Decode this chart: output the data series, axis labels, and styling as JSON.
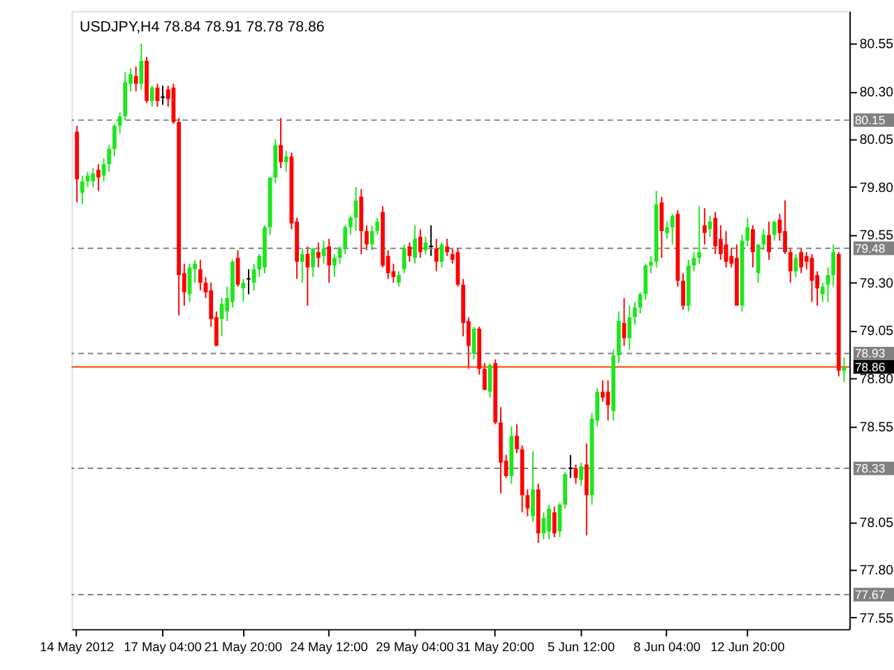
{
  "chart_data": {
    "type": "candlestick",
    "title": "USDJPY,H4 78.84 78.91 78.78 78.86",
    "categories": [
      "14 May 2012",
      null,
      null,
      null,
      null,
      null,
      null,
      null,
      null,
      null,
      null,
      null,
      null,
      null,
      null,
      null,
      "17 May 04:00",
      null,
      null,
      null,
      null,
      null,
      null,
      null,
      null,
      null,
      null,
      null,
      null,
      null,
      null,
      "21 May 20:00",
      null,
      null,
      null,
      null,
      null,
      null,
      null,
      null,
      null,
      null,
      null,
      null,
      null,
      null,
      null,
      "24 May 12:00",
      null,
      null,
      null,
      null,
      null,
      null,
      null,
      null,
      null,
      null,
      null,
      null,
      null,
      null,
      null,
      "29 May 04:00",
      null,
      null,
      null,
      null,
      null,
      null,
      null,
      null,
      null,
      null,
      null,
      null,
      null,
      null,
      "31 May 20:00",
      null,
      null,
      null,
      null,
      null,
      null,
      null,
      null,
      null,
      null,
      null,
      null,
      null,
      null,
      null,
      "5 Jun 12:00",
      null,
      null,
      null,
      null,
      null,
      null,
      null,
      null,
      null,
      null,
      null,
      null,
      null,
      null,
      null,
      "8 Jun 04:00",
      null,
      null,
      null,
      null,
      null,
      null,
      null,
      null,
      null,
      null,
      null,
      null,
      null,
      null,
      "12 Jun 20:00",
      null,
      null,
      null,
      null,
      null,
      null,
      null,
      null,
      null,
      null,
      null,
      null,
      null,
      null,
      null,
      null,
      null,
      null
    ],
    "ohlc": [
      [
        80.09,
        80.12,
        79.72,
        79.84
      ],
      [
        79.77,
        79.86,
        79.71,
        79.83
      ],
      [
        79.83,
        79.88,
        79.8,
        79.86
      ],
      [
        79.83,
        79.9,
        79.8,
        79.87
      ],
      [
        79.89,
        79.92,
        79.78,
        79.85
      ],
      [
        79.86,
        79.95,
        79.83,
        79.92
      ],
      [
        79.92,
        80.02,
        79.88,
        80.0
      ],
      [
        80.0,
        80.13,
        79.96,
        80.12
      ],
      [
        80.12,
        80.19,
        80.08,
        80.17
      ],
      [
        80.17,
        80.4,
        80.15,
        80.35
      ],
      [
        80.34,
        80.42,
        80.3,
        80.39
      ],
      [
        80.38,
        80.43,
        80.3,
        80.34
      ],
      [
        80.34,
        80.55,
        80.31,
        80.46
      ],
      [
        80.46,
        80.48,
        80.24,
        80.25
      ],
      [
        80.25,
        80.33,
        80.22,
        80.32
      ],
      [
        80.32,
        80.34,
        80.22,
        80.25
      ],
      [
        80.27,
        80.33,
        80.23,
        80.27
      ],
      [
        80.31,
        80.33,
        80.22,
        80.26
      ],
      [
        80.32,
        80.34,
        80.13,
        80.14
      ],
      [
        80.14,
        80.16,
        79.13,
        79.34
      ],
      [
        79.35,
        79.4,
        79.18,
        79.25
      ],
      [
        79.24,
        79.4,
        79.2,
        79.38
      ],
      [
        79.37,
        79.42,
        79.3,
        79.4
      ],
      [
        79.37,
        79.42,
        79.26,
        79.3
      ],
      [
        79.3,
        79.33,
        79.22,
        79.25
      ],
      [
        79.26,
        79.3,
        79.07,
        79.11
      ],
      [
        79.12,
        79.15,
        78.97,
        78.97
      ],
      [
        79.11,
        79.22,
        79.02,
        79.19
      ],
      [
        79.15,
        79.28,
        79.1,
        79.22
      ],
      [
        79.2,
        79.42,
        79.17,
        79.41
      ],
      [
        79.43,
        79.47,
        79.28,
        79.29
      ],
      [
        79.27,
        79.32,
        79.2,
        79.3
      ],
      [
        79.32,
        79.37,
        79.24,
        79.32
      ],
      [
        79.3,
        79.4,
        79.26,
        79.37
      ],
      [
        79.37,
        79.45,
        79.33,
        79.44
      ],
      [
        79.38,
        79.6,
        79.35,
        79.59
      ],
      [
        79.59,
        79.85,
        79.55,
        79.85
      ],
      [
        79.85,
        80.05,
        79.82,
        80.02
      ],
      [
        80.02,
        80.16,
        79.9,
        79.93
      ],
      [
        79.93,
        79.99,
        79.88,
        79.96
      ],
      [
        79.96,
        79.98,
        79.58,
        79.61
      ],
      [
        79.62,
        79.64,
        79.32,
        79.41
      ],
      [
        79.41,
        79.48,
        79.3,
        79.45
      ],
      [
        79.45,
        79.49,
        79.18,
        79.38
      ],
      [
        79.38,
        79.48,
        79.33,
        79.48
      ],
      [
        79.46,
        79.51,
        79.38,
        79.43
      ],
      [
        79.44,
        79.52,
        79.4,
        79.48
      ],
      [
        79.49,
        79.53,
        79.3,
        79.39
      ],
      [
        79.39,
        79.45,
        79.33,
        79.43
      ],
      [
        79.43,
        79.49,
        79.4,
        79.48
      ],
      [
        79.48,
        79.6,
        79.45,
        79.59
      ],
      [
        79.59,
        79.65,
        79.55,
        79.64
      ],
      [
        79.64,
        79.8,
        79.57,
        79.73
      ],
      [
        79.75,
        79.79,
        79.45,
        79.57
      ],
      [
        79.57,
        79.6,
        79.47,
        79.5
      ],
      [
        79.5,
        79.6,
        79.47,
        79.57
      ],
      [
        79.57,
        79.64,
        79.55,
        79.62
      ],
      [
        79.67,
        79.7,
        79.38,
        79.39
      ],
      [
        79.44,
        79.47,
        79.32,
        79.35
      ],
      [
        79.36,
        79.4,
        79.3,
        79.33
      ],
      [
        79.3,
        79.36,
        79.28,
        79.34
      ],
      [
        79.37,
        79.5,
        79.35,
        79.48
      ],
      [
        79.49,
        79.51,
        79.41,
        79.44
      ],
      [
        79.43,
        79.6,
        79.4,
        79.53
      ],
      [
        79.54,
        79.58,
        79.43,
        79.46
      ],
      [
        79.47,
        79.54,
        79.45,
        79.51
      ],
      [
        79.49,
        79.6,
        79.44,
        79.49
      ],
      [
        79.48,
        79.53,
        79.36,
        79.41
      ],
      [
        79.41,
        79.51,
        79.38,
        79.5
      ],
      [
        79.49,
        79.53,
        79.44,
        79.46
      ],
      [
        79.45,
        79.48,
        79.4,
        79.42
      ],
      [
        79.46,
        79.48,
        79.28,
        79.29
      ],
      [
        79.29,
        79.32,
        79.02,
        79.09
      ],
      [
        79.1,
        79.12,
        78.85,
        78.97
      ],
      [
        78.93,
        79.07,
        78.9,
        79.06
      ],
      [
        79.06,
        79.07,
        78.82,
        78.85
      ],
      [
        78.85,
        78.88,
        78.74,
        78.74
      ],
      [
        78.73,
        78.88,
        78.7,
        78.87
      ],
      [
        78.88,
        78.9,
        78.56,
        78.57
      ],
      [
        78.57,
        78.65,
        78.2,
        78.36
      ],
      [
        78.37,
        78.4,
        78.28,
        78.29
      ],
      [
        78.29,
        78.55,
        78.25,
        78.5
      ],
      [
        78.5,
        78.56,
        78.41,
        78.43
      ],
      [
        78.43,
        78.45,
        78.1,
        78.19
      ],
      [
        78.19,
        78.22,
        78.08,
        78.12
      ],
      [
        78.08,
        78.42,
        78.05,
        78.22
      ],
      [
        78.22,
        78.25,
        77.94,
        77.99
      ],
      [
        77.99,
        78.1,
        77.96,
        78.07
      ],
      [
        78.0,
        78.14,
        77.96,
        78.12
      ],
      [
        78.1,
        78.13,
        77.97,
        77.99
      ],
      [
        78.0,
        78.15,
        77.97,
        78.14
      ],
      [
        78.14,
        78.31,
        78.12,
        78.3
      ],
      [
        78.33,
        78.4,
        78.28,
        78.33
      ],
      [
        78.33,
        78.35,
        78.25,
        78.28
      ],
      [
        78.27,
        78.36,
        78.24,
        78.34
      ],
      [
        78.35,
        78.46,
        77.98,
        78.19
      ],
      [
        78.19,
        78.62,
        78.14,
        78.59
      ],
      [
        78.58,
        78.75,
        78.55,
        78.73
      ],
      [
        78.73,
        78.79,
        78.68,
        78.7
      ],
      [
        78.73,
        78.79,
        78.58,
        78.66
      ],
      [
        78.63,
        78.95,
        78.58,
        78.92
      ],
      [
        78.92,
        79.15,
        78.88,
        79.1
      ],
      [
        79.09,
        79.22,
        78.97,
        79.01
      ],
      [
        79.01,
        79.18,
        78.95,
        79.12
      ],
      [
        79.12,
        79.2,
        79.08,
        79.17
      ],
      [
        79.17,
        79.25,
        79.14,
        79.24
      ],
      [
        79.24,
        79.4,
        79.21,
        79.39
      ],
      [
        79.39,
        79.44,
        79.35,
        79.41
      ],
      [
        79.41,
        79.78,
        79.38,
        79.71
      ],
      [
        79.72,
        79.75,
        79.43,
        79.57
      ],
      [
        79.56,
        79.62,
        79.53,
        79.59
      ],
      [
        79.59,
        79.66,
        79.5,
        79.65
      ],
      [
        79.66,
        79.68,
        79.28,
        79.31
      ],
      [
        79.31,
        79.35,
        79.16,
        79.18
      ],
      [
        79.18,
        79.42,
        79.15,
        79.39
      ],
      [
        79.39,
        79.46,
        79.36,
        79.43
      ],
      [
        79.43,
        79.7,
        79.4,
        79.46
      ],
      [
        79.6,
        79.69,
        79.5,
        79.56
      ],
      [
        79.58,
        79.65,
        79.54,
        79.62
      ],
      [
        79.64,
        79.67,
        79.45,
        79.49
      ],
      [
        79.53,
        79.6,
        79.42,
        79.45
      ],
      [
        79.5,
        79.57,
        79.38,
        79.41
      ],
      [
        79.44,
        79.48,
        79.38,
        79.4
      ],
      [
        79.43,
        79.5,
        79.18,
        79.18
      ],
      [
        79.18,
        79.55,
        79.15,
        79.52
      ],
      [
        79.52,
        79.64,
        79.49,
        79.59
      ],
      [
        79.58,
        79.6,
        79.38,
        79.46
      ],
      [
        79.35,
        79.5,
        79.3,
        79.5
      ],
      [
        79.5,
        79.58,
        79.47,
        79.55
      ],
      [
        79.55,
        79.62,
        79.42,
        79.46
      ],
      [
        79.55,
        79.62,
        79.52,
        79.62
      ],
      [
        79.63,
        79.66,
        79.52,
        79.56
      ],
      [
        79.57,
        79.73,
        79.45,
        79.46
      ],
      [
        79.46,
        79.48,
        79.3,
        79.36
      ],
      [
        79.36,
        79.45,
        79.33,
        79.43
      ],
      [
        79.46,
        79.48,
        79.35,
        79.38
      ],
      [
        79.44,
        79.46,
        79.37,
        79.41
      ],
      [
        79.43,
        79.45,
        79.2,
        79.31
      ],
      [
        79.34,
        79.36,
        79.18,
        79.27
      ],
      [
        79.24,
        79.3,
        79.2,
        79.28
      ],
      [
        79.29,
        79.38,
        79.2,
        79.34
      ],
      [
        79.34,
        79.5,
        79.28,
        79.46
      ],
      [
        79.45,
        79.46,
        78.81,
        78.84
      ],
      [
        78.84,
        78.91,
        78.78,
        78.86
      ]
    ],
    "colors": [
      "#ff0000",
      "#1ee61e",
      "#1ee61e",
      "#1ee61e",
      "#ff0000",
      "#1ee61e",
      "#1ee61e",
      "#1ee61e",
      "#1ee61e",
      "#1ee61e",
      "#1ee61e",
      "#ff0000",
      "#1ee61e",
      "#ff0000",
      "#1ee61e",
      "#ff0000",
      "#000000",
      "#ff0000",
      "#ff0000",
      "#ff0000",
      "#ff0000",
      "#1ee61e",
      "#1ee61e",
      "#ff0000",
      "#ff0000",
      "#ff0000",
      "#ff0000",
      "#1ee61e",
      "#1ee61e",
      "#1ee61e",
      "#ff0000",
      "#1ee61e",
      "#000000",
      "#1ee61e",
      "#1ee61e",
      "#1ee61e",
      "#1ee61e",
      "#1ee61e",
      "#ff0000",
      "#1ee61e",
      "#ff0000",
      "#ff0000",
      "#1ee61e",
      "#ff0000",
      "#1ee61e",
      "#ff0000",
      "#1ee61e",
      "#ff0000",
      "#1ee61e",
      "#1ee61e",
      "#1ee61e",
      "#1ee61e",
      "#1ee61e",
      "#ff0000",
      "#ff0000",
      "#1ee61e",
      "#1ee61e",
      "#ff0000",
      "#ff0000",
      "#ff0000",
      "#1ee61e",
      "#1ee61e",
      "#ff0000",
      "#1ee61e",
      "#ff0000",
      "#1ee61e",
      "#000000",
      "#ff0000",
      "#1ee61e",
      "#ff0000",
      "#ff0000",
      "#ff0000",
      "#ff0000",
      "#ff0000",
      "#1ee61e",
      "#ff0000",
      "#ff0000",
      "#1ee61e",
      "#ff0000",
      "#ff0000",
      "#ff0000",
      "#1ee61e",
      "#ff0000",
      "#ff0000",
      "#ff0000",
      "#1ee61e",
      "#ff0000",
      "#1ee61e",
      "#1ee61e",
      "#ff0000",
      "#1ee61e",
      "#1ee61e",
      "#000000",
      "#ff0000",
      "#1ee61e",
      "#ff0000",
      "#1ee61e",
      "#1ee61e",
      "#ff0000",
      "#ff0000",
      "#1ee61e",
      "#1ee61e",
      "#ff0000",
      "#1ee61e",
      "#1ee61e",
      "#1ee61e",
      "#1ee61e",
      "#1ee61e",
      "#1ee61e",
      "#ff0000",
      "#1ee61e",
      "#1ee61e",
      "#ff0000",
      "#ff0000",
      "#1ee61e",
      "#1ee61e",
      "#1ee61e",
      "#ff0000",
      "#1ee61e",
      "#ff0000",
      "#ff0000",
      "#ff0000",
      "#ff0000",
      "#ff0000",
      "#1ee61e",
      "#1ee61e",
      "#ff0000",
      "#1ee61e",
      "#1ee61e",
      "#ff0000",
      "#1ee61e",
      "#ff0000",
      "#ff0000",
      "#ff0000",
      "#1ee61e",
      "#ff0000",
      "#ff0000",
      "#ff0000",
      "#ff0000",
      "#1ee61e",
      "#1ee61e",
      "#1ee61e",
      "#ff0000",
      "#1ee61e"
    ],
    "ylim": [
      77.49,
      80.72
    ],
    "yticks": [
      77.55,
      {
        "value": 77.8,
        "label": "77.80"
      },
      78.05,
      78.55,
      {
        "value": 78.8,
        "label": "78.80"
      },
      79.05,
      {
        "value": 79.3,
        "label": "79.30"
      },
      79.55,
      {
        "value": 79.8,
        "label": "79.80"
      },
      80.05,
      {
        "value": 80.3,
        "label": "80.30"
      },
      80.55
    ],
    "ref_lines": [
      {
        "axis": "y",
        "value": 80.15,
        "label": "80.15",
        "color": "#808080",
        "line_style": "dashed"
      },
      {
        "axis": "y",
        "value": 79.48,
        "label": "79.48",
        "color": "#808080",
        "line_style": "dashed"
      },
      {
        "axis": "y",
        "value": 78.93,
        "label": "78.93",
        "color": "#808080",
        "line_style": "dashed"
      },
      {
        "axis": "y",
        "value": 78.33,
        "label": "78.33",
        "color": "#808080",
        "line_style": "dashed"
      },
      {
        "axis": "y",
        "value": 77.67,
        "label": "77.67",
        "color": "#808080",
        "line_style": "dashed"
      },
      {
        "axis": "y",
        "value": 78.86,
        "label": "78.86",
        "color": "#ff4500",
        "line_style": "solid"
      }
    ],
    "grid": false
  }
}
